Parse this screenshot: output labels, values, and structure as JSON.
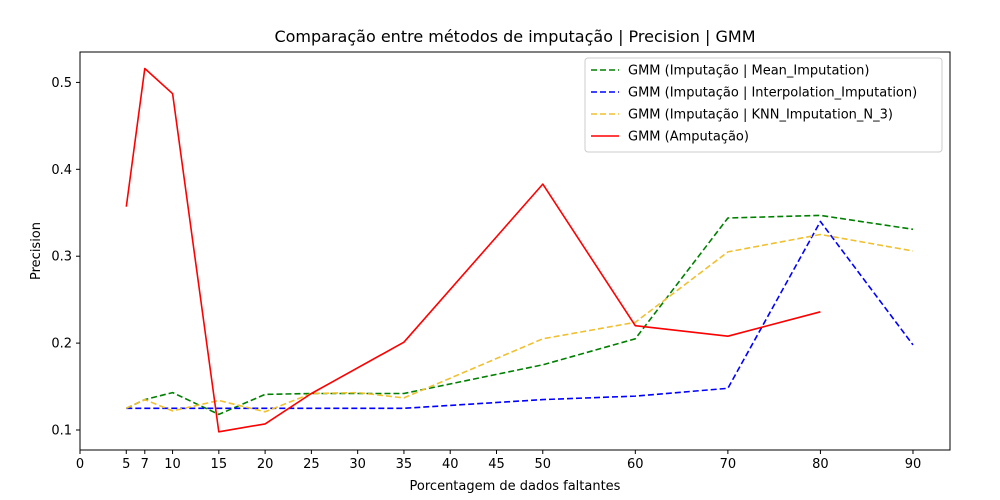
{
  "chart_data": {
    "type": "line",
    "title": "Comparação entre métodos de imputação | Precision | GMM",
    "xlabel": "Porcentagem de dados faltantes",
    "ylabel": "Precision",
    "xlim": [
      0,
      94
    ],
    "ylim": [
      0.077,
      0.535
    ],
    "xticks": [
      0,
      5,
      7,
      10,
      15,
      20,
      25,
      30,
      35,
      40,
      45,
      50,
      60,
      70,
      80,
      90
    ],
    "yticks": [
      0.1,
      0.2,
      0.3,
      0.4,
      0.5
    ],
    "grid": false,
    "legend_position": "top-right",
    "series": [
      {
        "name": "GMM (Imputação | Mean_Imputation)",
        "color": "#008000",
        "dash": "dashed",
        "points": [
          [
            5,
            0.125
          ],
          [
            7,
            0.135
          ],
          [
            10,
            0.143
          ],
          [
            15,
            0.118
          ],
          [
            20,
            0.141
          ],
          [
            25,
            0.142
          ],
          [
            30,
            0.142
          ],
          [
            35,
            0.142
          ],
          [
            50,
            0.175
          ],
          [
            60,
            0.205
          ],
          [
            70,
            0.344
          ],
          [
            80,
            0.347
          ],
          [
            90,
            0.331
          ]
        ]
      },
      {
        "name": "GMM (Imputação | Interpolation_Imputation)",
        "color": "#0000ff",
        "dash": "dashed",
        "points": [
          [
            5,
            0.125
          ],
          [
            7,
            0.125
          ],
          [
            10,
            0.125
          ],
          [
            15,
            0.125
          ],
          [
            20,
            0.125
          ],
          [
            25,
            0.125
          ],
          [
            30,
            0.125
          ],
          [
            35,
            0.125
          ],
          [
            50,
            0.135
          ],
          [
            60,
            0.139
          ],
          [
            70,
            0.148
          ],
          [
            80,
            0.34
          ],
          [
            90,
            0.198
          ]
        ]
      },
      {
        "name": "GMM (Imputação | KNN_Imputation_N_3)",
        "color": "#f0c030",
        "dash": "dashed",
        "points": [
          [
            5,
            0.125
          ],
          [
            7,
            0.135
          ],
          [
            10,
            0.122
          ],
          [
            15,
            0.134
          ],
          [
            20,
            0.121
          ],
          [
            25,
            0.142
          ],
          [
            30,
            0.143
          ],
          [
            35,
            0.137
          ],
          [
            50,
            0.205
          ],
          [
            60,
            0.224
          ],
          [
            70,
            0.305
          ],
          [
            80,
            0.325
          ],
          [
            90,
            0.306
          ]
        ]
      },
      {
        "name": "GMM (Amputação)",
        "color": "#ff0000",
        "dash": "solid",
        "points": [
          [
            5,
            0.357
          ],
          [
            7,
            0.516
          ],
          [
            10,
            0.487
          ],
          [
            15,
            0.098
          ],
          [
            20,
            0.107
          ],
          [
            25,
            0.142
          ],
          [
            35,
            0.201
          ],
          [
            50,
            0.383
          ],
          [
            60,
            0.22
          ],
          [
            70,
            0.208
          ],
          [
            80,
            0.236
          ]
        ]
      }
    ]
  }
}
